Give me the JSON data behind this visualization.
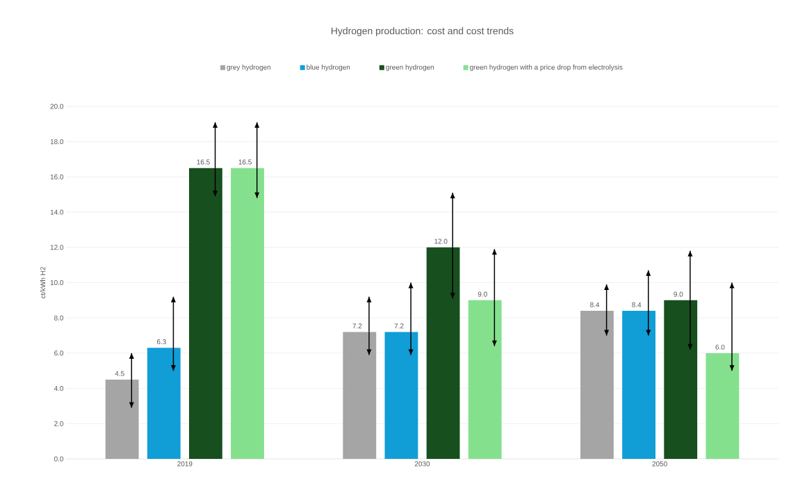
{
  "chart_data": {
    "type": "bar",
    "title": "Hydrogen production: cost and cost trends",
    "ylabel": "ct/kWh H2",
    "categories": [
      "2019",
      "2030",
      "2050"
    ],
    "series": [
      {
        "name": "grey hydrogen",
        "color": "#a5a5a5",
        "values": [
          4.5,
          7.2,
          8.4
        ],
        "value_labels": [
          "4.5",
          "7.2",
          "8.4"
        ],
        "errors": [
          [
            2.9,
            6.0
          ],
          [
            5.9,
            9.2
          ],
          [
            7.0,
            9.9
          ]
        ]
      },
      {
        "name": "blue hydrogen",
        "color": "#119ed6",
        "values": [
          6.3,
          7.2,
          8.4
        ],
        "value_labels": [
          "6.3",
          "7.2",
          "8.4"
        ],
        "errors": [
          [
            5.0,
            9.2
          ],
          [
            5.9,
            10.0
          ],
          [
            7.0,
            10.7
          ]
        ]
      },
      {
        "name": "green hydrogen",
        "color": "#174f1e",
        "values": [
          16.5,
          12.0,
          9.0
        ],
        "value_labels": [
          "16.5",
          "12.0",
          "9.0"
        ],
        "errors": [
          [
            14.9,
            19.1
          ],
          [
            9.1,
            15.1
          ],
          [
            6.2,
            11.8
          ]
        ]
      },
      {
        "name": "green hydrogen with a price drop from electrolysis",
        "color": "#85e08e",
        "values": [
          16.5,
          9.0,
          6.0
        ],
        "value_labels": [
          "16.5",
          "9.0",
          "6.0"
        ],
        "errors": [
          [
            14.8,
            19.1
          ],
          [
            6.4,
            11.9
          ],
          [
            5.0,
            10.0
          ]
        ]
      }
    ],
    "ylim": [
      0,
      20
    ],
    "yticks": [
      {
        "value": 0,
        "label": "0.0"
      },
      {
        "value": 2,
        "label": "2.0"
      },
      {
        "value": 4,
        "label": "4.0"
      },
      {
        "value": 6,
        "label": "6.0"
      },
      {
        "value": 8,
        "label": "8.0"
      },
      {
        "value": 10,
        "label": "10.0"
      },
      {
        "value": 12,
        "label": "12.0"
      },
      {
        "value": 14,
        "label": "14.0"
      },
      {
        "value": 16,
        "label": "16.0"
      },
      {
        "value": 18,
        "label": "18.0"
      },
      {
        "value": 20,
        "label": "20.0"
      }
    ],
    "grid": "y",
    "legend": "top"
  }
}
